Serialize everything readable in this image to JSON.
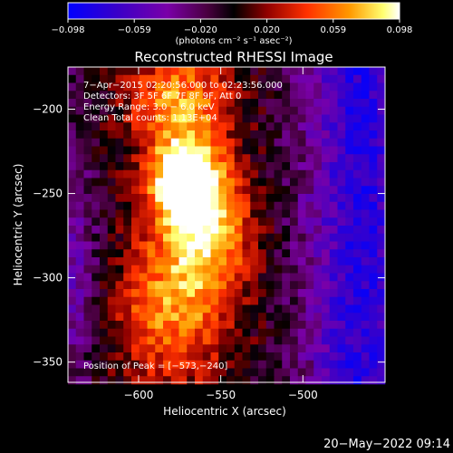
{
  "colorbar": {
    "ticks": [
      "−0.098",
      "−0.059",
      "−0.020",
      "0.020",
      "0.059",
      "0.098"
    ],
    "unit_label": "(photons cm⁻² s⁻¹ asec⁻²)",
    "colors": [
      "#0000ff",
      "#3a00c8",
      "#8000a0",
      "#5a0050",
      "#000000",
      "#900000",
      "#ff3000",
      "#ff9000",
      "#ffff60",
      "#ffffff"
    ]
  },
  "chart_data": {
    "type": "heatmap",
    "title": "Reconstructed RHESSI Image",
    "xlabel": "Heliocentric X (arcsec)",
    "ylabel": "Heliocentric Y (arcsec)",
    "xlim": [
      -643,
      -450
    ],
    "ylim": [
      -362,
      -175
    ],
    "xticks": [
      -600,
      -550,
      -500
    ],
    "yticks": [
      -200,
      -250,
      -300,
      -350
    ],
    "xtick_labels": [
      "−600",
      "−550",
      "−500"
    ],
    "ytick_labels": [
      "−200",
      "−250",
      "−300",
      "−350"
    ],
    "annotations": [
      "7−Apr−2015 02:20:56.000 to 02:23:56.000",
      "Detectors: 3F 5F 6F 7F 8F 9F, Att 0",
      "Energy Range: 3.0 − 6.0 keV",
      "Clean     Total counts: 1.13E+04"
    ],
    "peak_label": "Position of Peak = [−573,−240]",
    "peak": [
      -573,
      -240
    ],
    "value_range": [
      -0.098,
      0.098
    ]
  },
  "footer": {
    "timestamp": "20−May−2022 09:14"
  }
}
